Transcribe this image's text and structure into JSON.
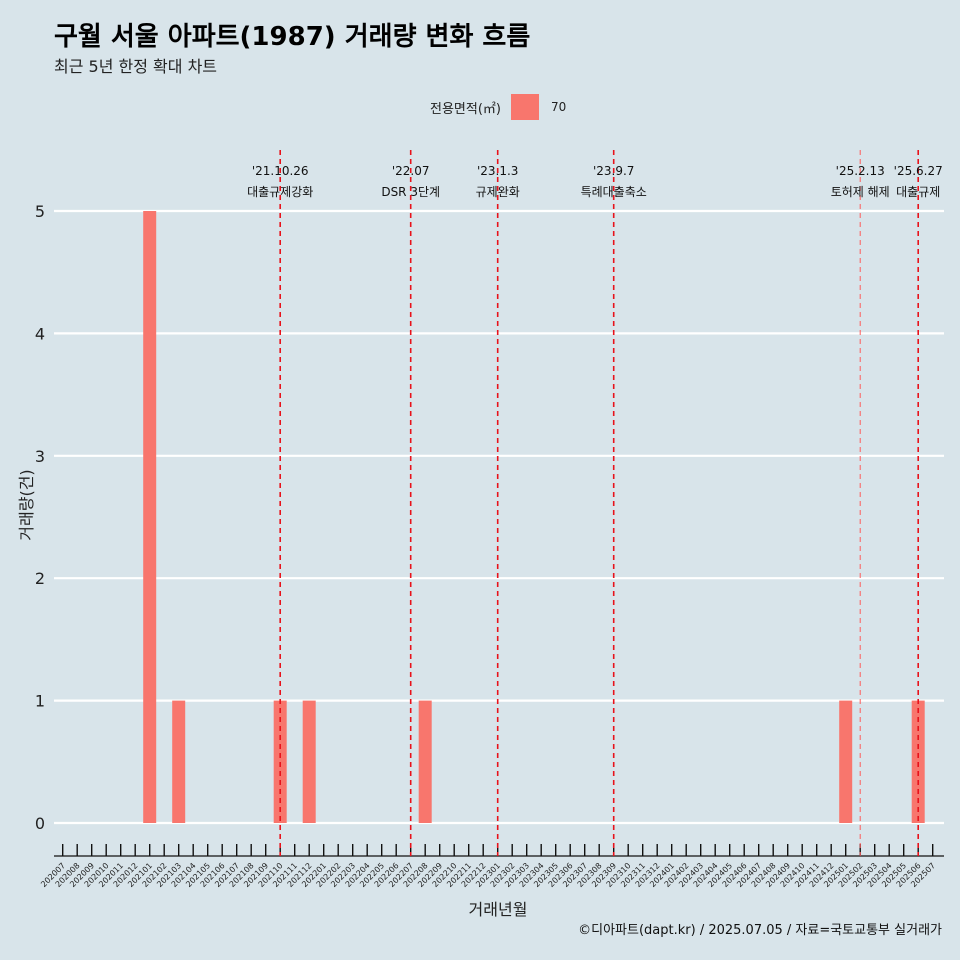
{
  "header": {
    "title": "구월 서울 아파트(1987) 거래량 변화 흐름",
    "subtitle": "최근 5년 한정 확대 차트"
  },
  "legend": {
    "title": "전용면적(㎡)",
    "key": "70",
    "color": "#f8766d"
  },
  "caption": "©디아파트(dapt.kr) / 2025.07.05 / 자료=국토교통부 실거래가",
  "chart_data": {
    "type": "bar",
    "xlabel": "거래년월",
    "ylabel": "거래량(건)",
    "ylim": [
      0,
      5
    ],
    "yticks": [
      0,
      1,
      2,
      3,
      4,
      5
    ],
    "grid": "horizontal",
    "legend_position": "top",
    "categories": [
      "202007",
      "202008",
      "202009",
      "202010",
      "202011",
      "202012",
      "202101",
      "202102",
      "202103",
      "202104",
      "202105",
      "202106",
      "202107",
      "202108",
      "202109",
      "202110",
      "202111",
      "202112",
      "202201",
      "202202",
      "202203",
      "202204",
      "202205",
      "202206",
      "202207",
      "202208",
      "202209",
      "202210",
      "202211",
      "202212",
      "202301",
      "202302",
      "202303",
      "202304",
      "202305",
      "202306",
      "202307",
      "202308",
      "202309",
      "202310",
      "202311",
      "202312",
      "202401",
      "202402",
      "202403",
      "202404",
      "202405",
      "202406",
      "202407",
      "202408",
      "202409",
      "202410",
      "202411",
      "202412",
      "202501",
      "202502",
      "202503",
      "202504",
      "202505",
      "202506",
      "202507"
    ],
    "series": [
      {
        "name": "70",
        "color": "#f8766d",
        "values": [
          0,
          0,
          0,
          0,
          0,
          0,
          5,
          0,
          1,
          0,
          0,
          0,
          0,
          0,
          0,
          1,
          0,
          1,
          0,
          0,
          0,
          0,
          0,
          0,
          0,
          1,
          0,
          0,
          0,
          0,
          0,
          0,
          0,
          0,
          0,
          0,
          0,
          0,
          0,
          0,
          0,
          0,
          0,
          0,
          0,
          0,
          0,
          0,
          0,
          0,
          0,
          0,
          0,
          0,
          1,
          0,
          0,
          0,
          0,
          1,
          0
        ]
      }
    ],
    "annotations": [
      {
        "x": "202110",
        "date": "'21.10.26",
        "label": "대출규제강화",
        "style": "bold"
      },
      {
        "x": "202207",
        "date": "'22.07",
        "label": "DSR 3단계",
        "style": "bold"
      },
      {
        "x": "202301",
        "date": "'23.1.3",
        "label": "규제완화",
        "style": "bold"
      },
      {
        "x": "202309",
        "date": "'23.9.7",
        "label": "특례대출축소",
        "style": "bold"
      },
      {
        "x": "202502",
        "date": "'25.2.13",
        "label": "토허제 해제",
        "style": "thin"
      },
      {
        "x": "202506",
        "date": "'25.6.27",
        "label": "대출규제",
        "style": "bold"
      }
    ]
  }
}
